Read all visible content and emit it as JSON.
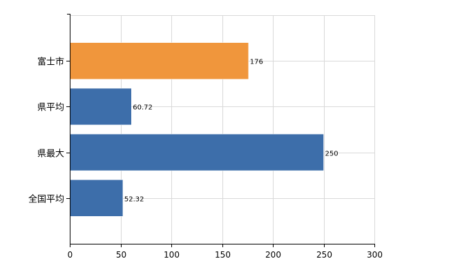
{
  "chart_data": {
    "type": "bar",
    "orientation": "horizontal",
    "categories": [
      "富士市",
      "県平均",
      "県最大",
      "全国平均"
    ],
    "values": [
      176,
      60.72,
      250,
      52.32
    ],
    "data_labels": [
      "176",
      "60.72",
      "250",
      "52.32"
    ],
    "bar_colors": [
      "#f0963c",
      "#3d6eaa",
      "#3d6eaa",
      "#3d6eaa"
    ],
    "xlim": [
      0,
      300
    ],
    "x_ticks": [
      0,
      50,
      100,
      150,
      200,
      250,
      300
    ],
    "x_tick_labels": [
      "0",
      "50",
      "100",
      "150",
      "200",
      "250",
      "300"
    ],
    "title": "",
    "xlabel": "",
    "ylabel": "",
    "grid": true,
    "legend": "none"
  },
  "colors": {
    "grid": "#d9d9d9",
    "axis": "#000000",
    "bar_stroke": "#ffffff"
  }
}
